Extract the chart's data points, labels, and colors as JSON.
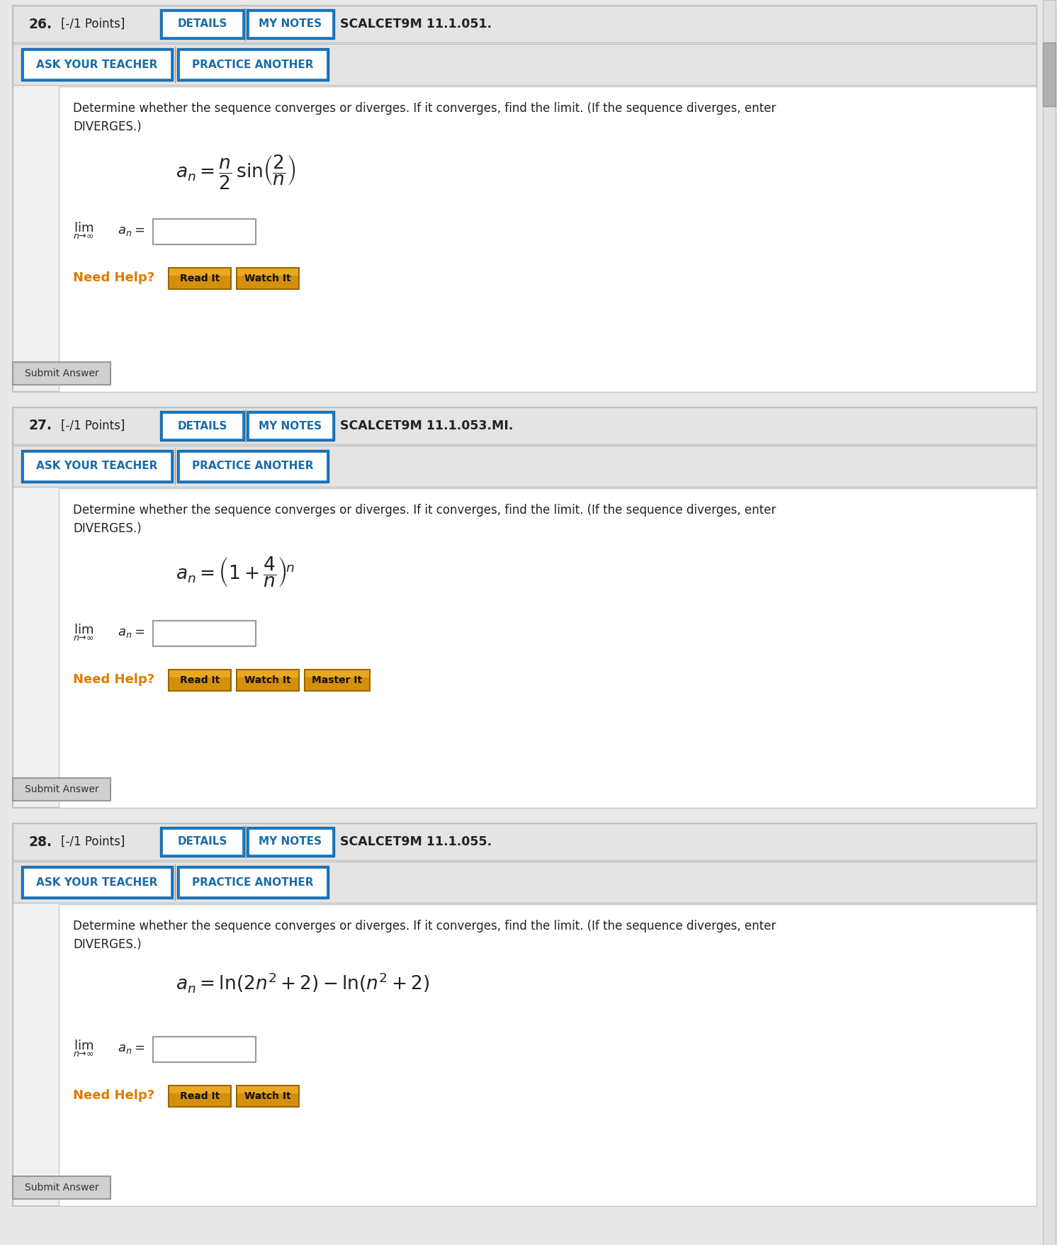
{
  "bg_outer": "#e8e8e8",
  "bg_panel_header": "#e2e2e2",
  "bg_white": "#ffffff",
  "border_light": "#cccccc",
  "border_dark": "#bbbbbb",
  "blue_text": "#1a6ca8",
  "blue_border": "#1a6ca8",
  "orange_text": "#e07b00",
  "orange_btn_bg": "#d4900a",
  "orange_btn_border": "#b07800",
  "gray_btn_bg": "#d8d8d8",
  "gray_btn_border": "#aaaaaa",
  "text_dark": "#222222",
  "scroll_bg": "#d8d8d8",
  "scroll_handle": "#b0b0b0",
  "problems": [
    {
      "number": "26.",
      "points": "[-/1 Points]",
      "code": "SCALCET9M 11.1.051.",
      "formula": "$a_n = \\dfrac{n}{2}\\,\\sin\\!\\left(\\dfrac{2}{n}\\right)$",
      "help_buttons": [
        "Read It",
        "Watch It"
      ]
    },
    {
      "number": "27.",
      "points": "[-/1 Points]",
      "code": "SCALCET9M 11.1.053.MI.",
      "formula": "$a_n = \\left(1 + \\dfrac{4}{n}\\right)^{\\!n}$",
      "help_buttons": [
        "Read It",
        "Watch It",
        "Master It"
      ]
    },
    {
      "number": "28.",
      "points": "[-/1 Points]",
      "code": "SCALCET9M 11.1.055.",
      "formula": "$a_n = \\ln(2n^2 + 2) - \\ln(n^2 + 2)$",
      "help_buttons": [
        "Read It",
        "Watch It"
      ]
    }
  ],
  "instruction1": "Determine whether the sequence converges or diverges. If it converges, find the limit. (If the sequence diverges, enter",
  "instruction2": "DIVERGES.)",
  "lim_text": "$\\underset{n\\to\\infty}{\\lim}\\, a_n\\, =$",
  "need_help": "Need Help?",
  "submit": "Submit Answer",
  "details": "DETAILS",
  "my_notes": "MY NOTES",
  "ask_teacher": "ASK YOUR TEACHER",
  "practice": "PRACTICE ANOTHER"
}
